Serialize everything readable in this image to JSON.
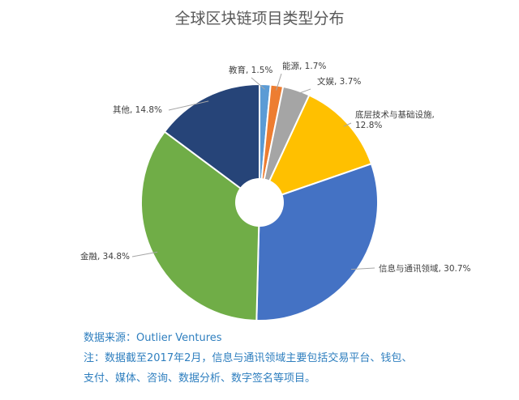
{
  "chart_data": {
    "type": "pie",
    "title": "全球区块链项目类型分布",
    "hole": "donut",
    "slices": [
      {
        "label_lines": [
          "教育, 1.5%"
        ],
        "value": 1.5,
        "color": "#5b9bd5"
      },
      {
        "label_lines": [
          "能源, 1.7%"
        ],
        "value": 1.7,
        "color": "#ed7d31"
      },
      {
        "label_lines": [
          "文娱, 3.7%"
        ],
        "value": 3.7,
        "color": "#a5a5a5"
      },
      {
        "label_lines": [
          "底层技术与基础设施,",
          "12.8%"
        ],
        "value": 12.8,
        "color": "#ffc000"
      },
      {
        "label_lines": [
          "信息与通讯领域, 30.7%"
        ],
        "value": 30.7,
        "color": "#4472c4"
      },
      {
        "label_lines": [
          "金融, 34.8%"
        ],
        "value": 34.8,
        "color": "#70ad47"
      },
      {
        "label_lines": [
          "其他, 14.8%"
        ],
        "value": 14.8,
        "color": "#264478"
      }
    ]
  },
  "notes": {
    "source": "数据来源：Outlier Ventures",
    "note_line1": "注：数据截至2017年2月，信息与通讯领域主要包括交易平台、钱包、",
    "note_line2": "支付、媒体、咨询、数据分析、数字签名等项目。"
  }
}
